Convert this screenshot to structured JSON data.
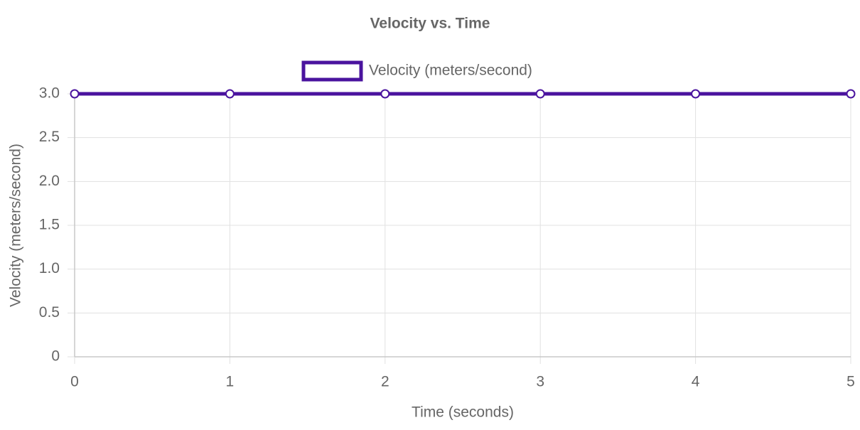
{
  "chart_data": {
    "type": "line",
    "title": "Velocity vs. Time",
    "x_label": "Time (seconds)",
    "y_label": "Velocity (meters/second)",
    "x": [
      0,
      1,
      2,
      3,
      4,
      5
    ],
    "series": [
      {
        "name": "Velocity (meters/second)",
        "color": "#4a139e",
        "values": [
          3,
          3,
          3,
          3,
          3,
          3
        ]
      }
    ],
    "xlim": [
      0,
      5
    ],
    "xticks": [
      0,
      1,
      2,
      3,
      4,
      5
    ],
    "ylim": [
      0,
      3
    ],
    "yticks": [
      0,
      0.5,
      {
        "value": 1,
        "label": "1.0"
      },
      1.5,
      {
        "value": 2,
        "label": "2.0"
      },
      2.5,
      {
        "value": 3,
        "label": "3.0"
      }
    ],
    "grid": true,
    "legend": "top"
  }
}
